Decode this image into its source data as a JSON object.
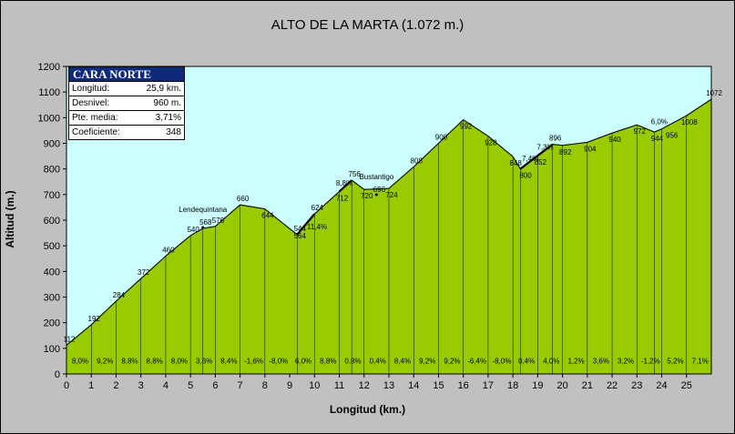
{
  "colors": {
    "plot_bg": "#ccffff",
    "terrain": "#99cc00",
    "frame": "#c0c0c0",
    "box_header": "#0f2a7a"
  },
  "chart_data": {
    "type": "area",
    "title": "ALTO DE LA MARTA (1.072 m.)",
    "xlabel": "Longitud (km.)",
    "ylabel": "Altitud (m.)",
    "xlim": [
      0,
      26
    ],
    "ylim": [
      0,
      1200
    ],
    "x_ticks": [
      "0",
      "1",
      "2",
      "3",
      "4",
      "5",
      "6",
      "7",
      "8",
      "9",
      "10",
      "11",
      "12",
      "13",
      "14",
      "15",
      "16",
      "17",
      "18",
      "19",
      "20",
      "21",
      "22",
      "23",
      "24",
      "25"
    ],
    "y_ticks": [
      "0",
      "100",
      "200",
      "300",
      "400",
      "500",
      "600",
      "700",
      "800",
      "900",
      "1000",
      "1100",
      "1200"
    ],
    "profile": [
      {
        "x": 0,
        "y": 112
      },
      {
        "x": 1,
        "y": 192
      },
      {
        "x": 2,
        "y": 284
      },
      {
        "x": 3,
        "y": 372
      },
      {
        "x": 4,
        "y": 460
      },
      {
        "x": 5,
        "y": 540
      },
      {
        "x": 5.5,
        "y": 568
      },
      {
        "x": 6,
        "y": 576
      },
      {
        "x": 7,
        "y": 660
      },
      {
        "x": 8,
        "y": 644
      },
      {
        "x": 9.3,
        "y": 544
      },
      {
        "x": 10,
        "y": 624
      },
      {
        "x": 11,
        "y": 712
      },
      {
        "x": 11.5,
        "y": 756
      },
      {
        "x": 12,
        "y": 720
      },
      {
        "x": 13,
        "y": 724
      },
      {
        "x": 14,
        "y": 808
      },
      {
        "x": 15,
        "y": 900
      },
      {
        "x": 16,
        "y": 992
      },
      {
        "x": 17,
        "y": 928
      },
      {
        "x": 18,
        "y": 848
      },
      {
        "x": 18.3,
        "y": 800
      },
      {
        "x": 19,
        "y": 852
      },
      {
        "x": 19.6,
        "y": 896
      },
      {
        "x": 20,
        "y": 892
      },
      {
        "x": 21,
        "y": 904
      },
      {
        "x": 22,
        "y": 940
      },
      {
        "x": 23,
        "y": 972
      },
      {
        "x": 23.7,
        "y": 944
      },
      {
        "x": 24,
        "y": 956
      },
      {
        "x": 25,
        "y": 1008
      },
      {
        "x": 26,
        "y": 1072
      }
    ],
    "elevation_labels": [
      {
        "x": 0,
        "y": 112,
        "text": "112",
        "pos": "above"
      },
      {
        "x": 1,
        "y": 192,
        "text": "192",
        "pos": "above"
      },
      {
        "x": 2,
        "y": 284,
        "text": "284",
        "pos": "above"
      },
      {
        "x": 3,
        "y": 372,
        "text": "372",
        "pos": "above"
      },
      {
        "x": 4,
        "y": 460,
        "text": "460",
        "pos": "above"
      },
      {
        "x": 5,
        "y": 540,
        "text": "540",
        "pos": "above"
      },
      {
        "x": 5.5,
        "y": 568,
        "text": "568",
        "pos": "above"
      },
      {
        "x": 6,
        "y": 576,
        "text": "576",
        "pos": "above"
      },
      {
        "x": 7,
        "y": 660,
        "text": "660",
        "pos": "above"
      },
      {
        "x": 8,
        "y": 644,
        "text": "644",
        "pos": "below"
      },
      {
        "x": 9.3,
        "y": 564,
        "text": "564",
        "pos": "below"
      },
      {
        "x": 9.3,
        "y": 544,
        "text": "544",
        "pos": "above"
      },
      {
        "x": 10,
        "y": 624,
        "text": "624",
        "pos": "above"
      },
      {
        "x": 11,
        "y": 712,
        "text": "712",
        "pos": "below"
      },
      {
        "x": 11.5,
        "y": 756,
        "text": "756",
        "pos": "above"
      },
      {
        "x": 12,
        "y": 720,
        "text": "720",
        "pos": "below"
      },
      {
        "x": 12.5,
        "y": 696,
        "text": "696",
        "pos": "above"
      },
      {
        "x": 13,
        "y": 724,
        "text": "724",
        "pos": "below"
      },
      {
        "x": 14,
        "y": 808,
        "text": "808",
        "pos": "above"
      },
      {
        "x": 15,
        "y": 900,
        "text": "900",
        "pos": "above"
      },
      {
        "x": 16,
        "y": 992,
        "text": "992",
        "pos": "below"
      },
      {
        "x": 17,
        "y": 928,
        "text": "928",
        "pos": "below"
      },
      {
        "x": 18,
        "y": 848,
        "text": "848",
        "pos": "below"
      },
      {
        "x": 18.4,
        "y": 800,
        "text": "800",
        "pos": "below"
      },
      {
        "x": 19,
        "y": 852,
        "text": "852",
        "pos": "below"
      },
      {
        "x": 19.6,
        "y": 896,
        "text": "896",
        "pos": "above"
      },
      {
        "x": 20,
        "y": 892,
        "text": "892",
        "pos": "below"
      },
      {
        "x": 21,
        "y": 904,
        "text": "904",
        "pos": "below"
      },
      {
        "x": 22,
        "y": 940,
        "text": "940",
        "pos": "below"
      },
      {
        "x": 23,
        "y": 972,
        "text": "972",
        "pos": "below"
      },
      {
        "x": 23.7,
        "y": 944,
        "text": "944",
        "pos": "below"
      },
      {
        "x": 24.3,
        "y": 956,
        "text": "956",
        "pos": "below"
      },
      {
        "x": 25,
        "y": 1008,
        "text": "1008",
        "pos": "below"
      },
      {
        "x": 26,
        "y": 1072,
        "text": "1072",
        "pos": "above"
      }
    ],
    "segment_gradients": [
      "8,0%",
      "9,2%",
      "8,8%",
      "8,8%",
      "8,0%",
      "3,6%",
      "8,4%",
      "-1,6%",
      "-8,0%",
      "6,0%",
      "8,8%",
      "0,8%",
      "0,4%",
      "8,4%",
      "9,2%",
      "9,2%",
      "-6,4%",
      "-8,0%",
      "0,4%",
      "4,0%",
      "1,2%",
      "3,6%",
      "3,2%",
      "-1,2%",
      "5,2%",
      "7,1%"
    ],
    "annotations": [
      {
        "x": 5.5,
        "y": 568,
        "text": "Lendequintana"
      },
      {
        "x": 12.5,
        "y": 696,
        "text": "Bustantigo"
      }
    ],
    "steep_labels": [
      {
        "x": 10.1,
        "y": 565,
        "text": "11,4%"
      },
      {
        "x": 11.2,
        "y": 735,
        "text": "8,8%"
      },
      {
        "x": 18.7,
        "y": 830,
        "text": "7,4%"
      },
      {
        "x": 19.3,
        "y": 875,
        "text": "7,3%"
      },
      {
        "x": 23.9,
        "y": 975,
        "text": "6,0%"
      }
    ]
  },
  "info_box": {
    "header": "CARA NORTE",
    "rows": [
      {
        "label": "Longitud:",
        "value": "25,9 km."
      },
      {
        "label": "Desnivel:",
        "value": "960 m."
      },
      {
        "label": "Pte. media:",
        "value": "3,71%"
      },
      {
        "label": "Coeficiente:",
        "value": "348"
      }
    ]
  }
}
